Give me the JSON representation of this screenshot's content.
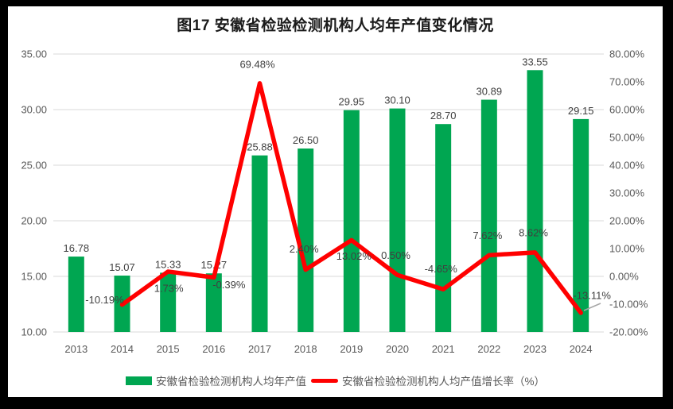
{
  "chart_data": {
    "type": "combo-bar-line",
    "title": "图17 安徽省检验检测机构人均年产值变化情况",
    "categories": [
      "2013",
      "2014",
      "2015",
      "2016",
      "2017",
      "2018",
      "2019",
      "2020",
      "2021",
      "2022",
      "2023",
      "2024"
    ],
    "series": [
      {
        "name": "安徽省检验检测机构人均年产值",
        "type": "bar",
        "axis": "left",
        "color": "#00A651",
        "values": [
          16.78,
          15.07,
          15.33,
          15.27,
          25.88,
          26.5,
          29.95,
          30.1,
          28.7,
          30.89,
          33.55,
          29.15
        ],
        "labels": [
          "16.78",
          "15.07",
          "15.33",
          "15.27",
          "25.88",
          "26.50",
          "29.95",
          "30.10",
          "28.70",
          "30.89",
          "33.55",
          "29.15"
        ]
      },
      {
        "name": "安徽省检验检测机构人均产值增长率（%）",
        "type": "line",
        "axis": "right",
        "color": "#FF0000",
        "values": [
          null,
          -10.19,
          1.73,
          -0.39,
          69.48,
          2.4,
          13.02,
          0.5,
          -4.65,
          7.62,
          8.62,
          -13.11
        ],
        "labels": [
          null,
          "-10.19%",
          "1.73%",
          "-0.39%",
          "69.48%",
          "2.40%",
          "13.02%",
          "0.50%",
          "-4.65%",
          "7.62%",
          "8.62%",
          "-13.11%"
        ]
      }
    ],
    "left_axis": {
      "min": 10,
      "max": 35,
      "step": 5,
      "tick_labels": [
        "35.00",
        "30.00",
        "25.00",
        "20.00",
        "15.00",
        "10.00"
      ]
    },
    "right_axis": {
      "min": -20,
      "max": 80,
      "step": 10,
      "tick_labels": [
        "80.00%",
        "70.00%",
        "60.00%",
        "50.00%",
        "40.00%",
        "30.00%",
        "20.00%",
        "10.00%",
        "0.00%",
        "-10.00%",
        "-20.00%"
      ]
    },
    "grid": true,
    "legend_position": "bottom"
  },
  "colors": {
    "bar": "#00A651",
    "line": "#FF0000",
    "gridline": "#D9D9D9",
    "axis_text": "#595959",
    "data_label": "#404040",
    "leader_line": "#A6A6A6",
    "frame_bg": "#FFFFFF",
    "outer_bg": "#000000"
  }
}
